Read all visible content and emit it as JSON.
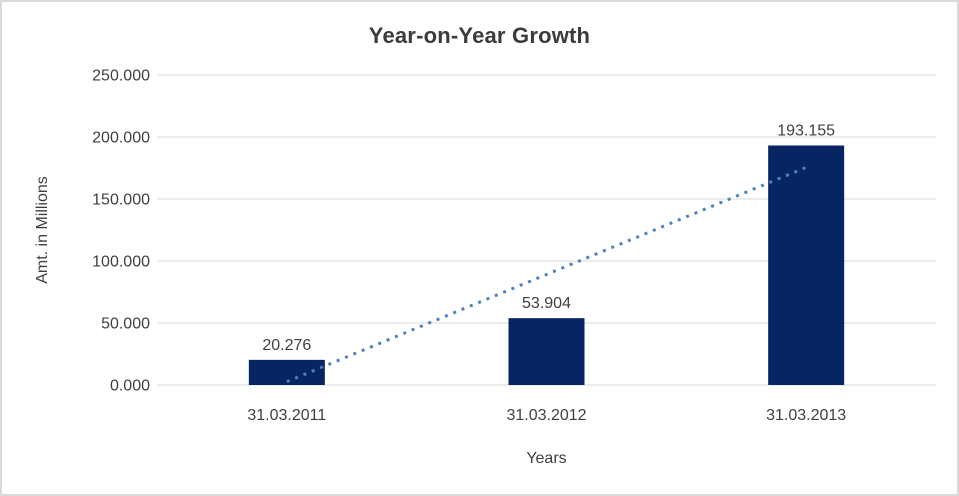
{
  "chart_data": {
    "type": "bar",
    "title": "Year-on-Year Growth",
    "xlabel": "Years",
    "ylabel": "Amt. in Millions",
    "categories": [
      "31.03.2011",
      "31.03.2012",
      "31.03.2013"
    ],
    "values": [
      20.276,
      53.904,
      193.155
    ],
    "value_labels": [
      "20.276",
      "53.904",
      "193.155"
    ],
    "ytick_values": [
      0,
      50,
      100,
      150,
      200,
      250
    ],
    "ytick_labels": [
      "0.000",
      "50.000",
      "100.000",
      "150.000",
      "200.000",
      "250.000"
    ],
    "ylim": [
      0,
      250
    ],
    "grid": "horizontal",
    "legend": "none",
    "trendline": {
      "type": "linear",
      "line_style": "dotted",
      "start_value": 2.7,
      "end_value": 175.5
    },
    "colors": {
      "bar": "#072563",
      "trendline": "#4f81bd",
      "gridline": "#d9d9d9",
      "text": "#3f3f3f",
      "background": "#ffffff",
      "border": "#d9d9d9"
    }
  }
}
